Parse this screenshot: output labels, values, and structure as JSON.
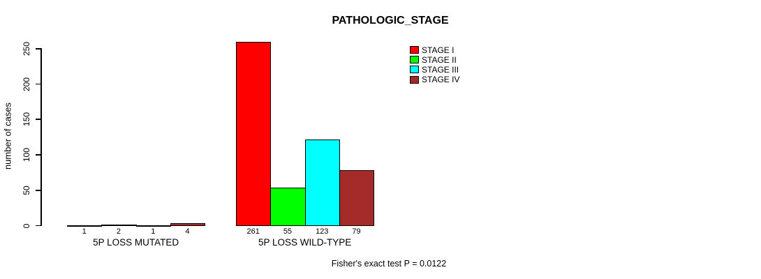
{
  "chart_data": {
    "type": "bar",
    "title": "PATHOLOGIC_STAGE",
    "ylabel": "number of cases",
    "ylim": [
      0,
      250
    ],
    "yticks": [
      0,
      50,
      100,
      150,
      200,
      250
    ],
    "grid": false,
    "groups": [
      {
        "label": "5P LOSS MUTATED",
        "values": [
          1,
          2,
          1,
          4
        ]
      },
      {
        "label": "5P LOSS WILD-TYPE",
        "values": [
          261,
          55,
          123,
          79
        ]
      }
    ],
    "series": [
      {
        "name": "STAGE I",
        "color": "#FF0000"
      },
      {
        "name": "STAGE II",
        "color": "#00FF00"
      },
      {
        "name": "STAGE III",
        "color": "#00FFFF"
      },
      {
        "name": "STAGE IV",
        "color": "#A52A2A"
      }
    ],
    "legend_position": "top-right",
    "annotation": "Fisher's exact test P = 0.0122"
  }
}
